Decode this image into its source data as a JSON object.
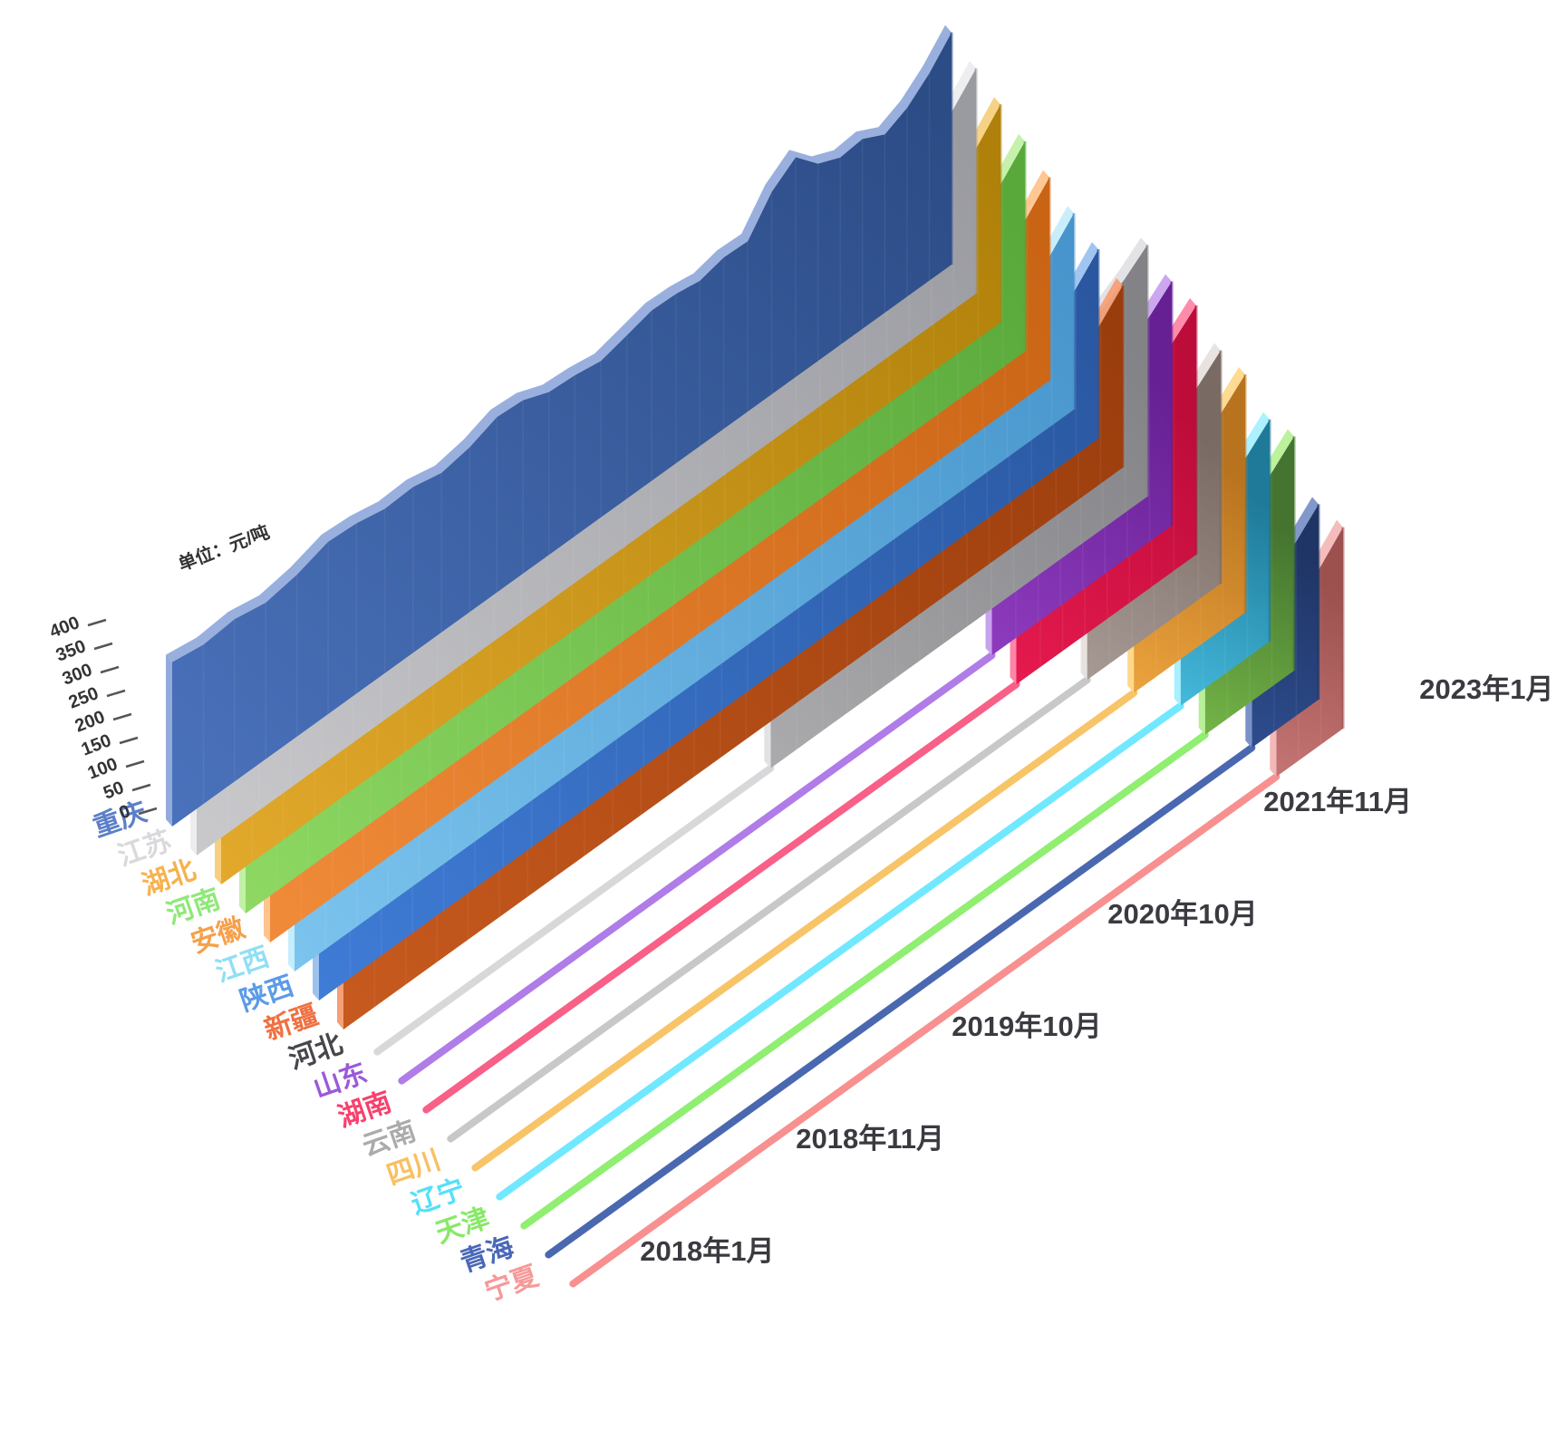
{
  "chart_data": {
    "type": "area",
    "variant": "3d-ridgeline",
    "unit_label": "单位：元/吨",
    "ylabel": "元/吨",
    "ylim": [
      0,
      400
    ],
    "y_ticks": [
      0,
      50,
      100,
      150,
      200,
      250,
      300,
      350,
      400
    ],
    "x_time_labels": [
      "2018年1月",
      "2018年11月",
      "2019年10月",
      "2020年10月",
      "2021年11月",
      "2023年1月"
    ],
    "x_time_label_months": [
      0,
      10,
      21,
      33,
      46,
      60
    ],
    "sampling": {
      "start_month_base": "2018-01",
      "step_months": 2,
      "total_months": 60
    },
    "legend_position": "left-diagonal",
    "grid": false,
    "series": [
      {
        "name": "重庆",
        "start_sample": 0,
        "label_color": "#5b7fc7",
        "face_light": "#4a72bc",
        "face_dark": "#2c4c86",
        "edge_light": "#93abdc",
        "line_color": "#7a97d0",
        "values": [
          330,
          320,
          326,
          314,
          325,
          346,
          342,
          330,
          333,
          320,
          331,
          352,
          348,
          327,
          323,
          314,
          328,
          342,
          340,
          332,
          344,
          342,
          406,
          441,
          396,
          376,
          381,
          358,
          379,
          416,
          466
        ]
      },
      {
        "name": "江苏",
        "start_sample": 0,
        "label_color": "#d9d9dc",
        "face_light": "#c9c9cc",
        "face_dark": "#9a9ba1",
        "edge_light": "#ededef",
        "line_color": "#d6d6d9",
        "values": [
          317,
          308,
          315,
          303,
          314,
          335,
          330,
          318,
          320,
          307,
          319,
          341,
          336,
          315,
          311,
          303,
          316,
          330,
          328,
          320,
          332,
          331,
          394,
          428,
          382,
          362,
          366,
          345,
          366,
          404,
          452
        ]
      },
      {
        "name": "湖北",
        "start_sample": 0,
        "label_color": "#f6b24e",
        "face_light": "#e2a92c",
        "face_dark": "#b0810a",
        "edge_light": "#f6d080",
        "line_color": "#f0c068",
        "values": [
          305,
          297,
          303,
          290,
          302,
          321,
          317,
          305,
          307,
          294,
          306,
          328,
          323,
          302,
          298,
          290,
          303,
          317,
          315,
          308,
          320,
          318,
          381,
          416,
          368,
          349,
          353,
          331,
          352,
          389,
          438
        ]
      },
      {
        "name": "河南",
        "start_sample": 0,
        "label_color": "#8fe878",
        "face_light": "#8ed863",
        "face_dark": "#58a83a",
        "edge_light": "#c2f0a8",
        "line_color": "#a0e888",
        "values": [
          293,
          284,
          291,
          278,
          290,
          309,
          305,
          293,
          295,
          282,
          294,
          316,
          311,
          290,
          286,
          278,
          291,
          305,
          303,
          296,
          308,
          306,
          367,
          402,
          355,
          336,
          340,
          319,
          339,
          375,
          422
        ]
      },
      {
        "name": "安徽",
        "start_sample": 0,
        "label_color": "#f5a04a",
        "face_light": "#f08b3a",
        "face_dark": "#c96414",
        "edge_light": "#ffc48e",
        "line_color": "#f8b070",
        "values": [
          281,
          272,
          279,
          266,
          278,
          297,
          292,
          281,
          283,
          270,
          282,
          304,
          299,
          278,
          274,
          266,
          279,
          293,
          291,
          284,
          296,
          294,
          354,
          388,
          342,
          323,
          327,
          306,
          326,
          361,
          408
        ]
      },
      {
        "name": "江西",
        "start_sample": 0,
        "label_color": "#8fdff5",
        "face_light": "#7cc4ee",
        "face_dark": "#4795cc",
        "edge_light": "#c6edfb",
        "line_color": "#a8e4f8",
        "values": [
          269,
          260,
          267,
          254,
          266,
          285,
          280,
          269,
          271,
          258,
          270,
          292,
          287,
          266,
          262,
          254,
          267,
          281,
          279,
          272,
          284,
          282,
          340,
          374,
          328,
          310,
          314,
          293,
          313,
          347,
          394
        ]
      },
      {
        "name": "陕西",
        "start_sample": 0,
        "label_color": "#5b9be8",
        "face_light": "#3f7cd6",
        "face_dark": "#2a57a0",
        "edge_light": "#9cc2f0",
        "line_color": "#78aae8",
        "values": [
          257,
          248,
          255,
          242,
          254,
          273,
          268,
          257,
          259,
          246,
          258,
          280,
          275,
          254,
          250,
          242,
          255,
          269,
          267,
          260,
          272,
          270,
          327,
          360,
          315,
          297,
          301,
          280,
          300,
          334,
          380
        ]
      },
      {
        "name": "新疆",
        "start_sample": 0,
        "label_color": "#f07040",
        "face_light": "#c75a1e",
        "face_dark": "#9a3d0d",
        "edge_light": "#f5a077",
        "line_color": "#e88858",
        "values": [
          245,
          236,
          243,
          230,
          242,
          261,
          256,
          245,
          247,
          234,
          246,
          268,
          263,
          242,
          238,
          230,
          243,
          257,
          255,
          248,
          260,
          258,
          313,
          347,
          302,
          284,
          288,
          267,
          287,
          321,
          366
        ]
      },
      {
        "name": "河北",
        "start_sample": 14,
        "label_color": "#46464c",
        "face_light": "#ababad",
        "face_dark": "#828287",
        "edge_light": "#e2e2e4",
        "line_color": "#d8d8da",
        "values": [
          352,
          360,
          374,
          380,
          373,
          384,
          380,
          440,
          476,
          430,
          410,
          414,
          392,
          412,
          442,
          470,
          505
        ]
      },
      {
        "name": "山东",
        "start_sample": 22,
        "label_color": "#9a5ad8",
        "face_light": "#8e3bbe",
        "face_dark": "#662093",
        "edge_light": "#c9a2ee",
        "line_color": "#b07ce8",
        "values": [
          452,
          488,
          448,
          425,
          430,
          408,
          424,
          452,
          490
        ]
      },
      {
        "name": "湖南",
        "start_sample": 22,
        "label_color": "#f8406e",
        "face_light": "#e61a4e",
        "face_dark": "#bc0c3a",
        "edge_light": "#ff85a6",
        "line_color": "#f86088",
        "values": [
          462,
          498,
          458,
          434,
          440,
          417,
          433,
          462,
          500
        ]
      },
      {
        "name": "云南",
        "start_sample": 24,
        "label_color": "#ababab",
        "face_light": "#a79a94",
        "face_dark": "#7a6a64",
        "edge_light": "#e8e2de",
        "line_color": "#c8c8c8",
        "values": [
          418,
          400,
          405,
          382,
          400,
          430,
          468
        ]
      },
      {
        "name": "四川",
        "start_sample": 25,
        "label_color": "#f8c060",
        "face_light": "#eca33e",
        "face_dark": "#b8731e",
        "edge_light": "#ffd88c",
        "line_color": "#f8c468",
        "values": [
          408,
          414,
          388,
          408,
          438,
          478
        ]
      },
      {
        "name": "辽宁",
        "start_sample": 26,
        "label_color": "#55e0f8",
        "face_light": "#45b9dc",
        "face_dark": "#1e7a98",
        "edge_light": "#a8f0ff",
        "line_color": "#70e8ff",
        "values": [
          378,
          354,
          374,
          406,
          446
        ]
      },
      {
        "name": "天津",
        "start_sample": 26,
        "label_color": "#88e868",
        "face_light": "#74b547",
        "face_dark": "#44742f",
        "edge_light": "#b8f098",
        "line_color": "#90ee70",
        "values": [
          402,
          380,
          400,
          430,
          470
        ]
      },
      {
        "name": "青海",
        "start_sample": 27,
        "label_color": "#4a68b8",
        "face_light": "#2e4d8e",
        "face_dark": "#1f3566",
        "edge_light": "#7a92c8",
        "line_color": "#4a68b0",
        "values": [
          302,
          320,
          350,
          392
        ]
      },
      {
        "name": "宁夏",
        "start_sample": 27,
        "label_color": "#f89898",
        "face_light": "#c47574",
        "face_dark": "#9c514f",
        "edge_light": "#f3b9b8",
        "line_color": "#f89090",
        "values": [
          350,
          330,
          358,
          404
        ]
      }
    ]
  }
}
